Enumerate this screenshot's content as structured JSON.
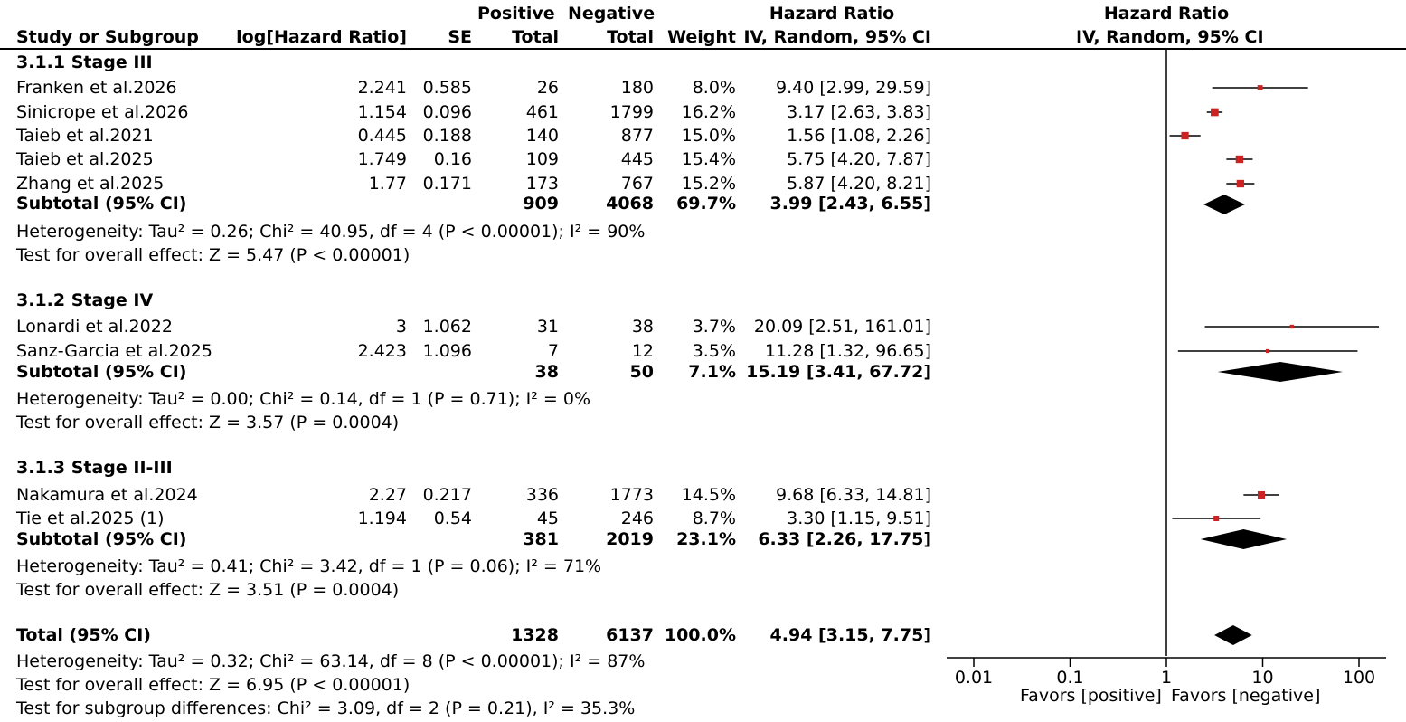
{
  "headers": {
    "study": "Study or Subgroup",
    "loghr": "log[Hazard Ratio]",
    "se": "SE",
    "pos_top": "Positive",
    "pos_bottom": "Total",
    "neg_top": "Negative",
    "neg_bottom": "Total",
    "weight": "Weight",
    "hr_top": "Hazard Ratio",
    "hr_bottom": "IV, Random, 95% CI",
    "plot_top": "Hazard Ratio",
    "plot_bottom": "IV, Random, 95% CI"
  },
  "subgroups": [
    {
      "title": "3.1.1 Stage III",
      "studies": [
        {
          "name": "Franken et al.2026",
          "loghr": "2.241",
          "se": "0.585",
          "pos": "26",
          "neg": "180",
          "weight": "8.0%",
          "ci": "9.40 [2.99, 29.59]"
        },
        {
          "name": "Sinicrope et al.2026",
          "loghr": "1.154",
          "se": "0.096",
          "pos": "461",
          "neg": "1799",
          "weight": "16.2%",
          "ci": "3.17 [2.63, 3.83]"
        },
        {
          "name": "Taieb et al.2021",
          "loghr": "0.445",
          "se": "0.188",
          "pos": "140",
          "neg": "877",
          "weight": "15.0%",
          "ci": "1.56 [1.08, 2.26]"
        },
        {
          "name": "Taieb et al.2025",
          "loghr": "1.749",
          "se": "0.16",
          "pos": "109",
          "neg": "445",
          "weight": "15.4%",
          "ci": "5.75 [4.20, 7.87]"
        },
        {
          "name": "Zhang et al.2025",
          "loghr": "1.77",
          "se": "0.171",
          "pos": "173",
          "neg": "767",
          "weight": "15.2%",
          "ci": "5.87 [4.20, 8.21]"
        }
      ],
      "subtotal": {
        "label": "Subtotal (95% CI)",
        "pos": "909",
        "neg": "4068",
        "weight": "69.7%",
        "ci": "3.99 [2.43, 6.55]"
      },
      "heterogeneity": "Heterogeneity: Tau² = 0.26; Chi² = 40.95, df = 4 (P < 0.00001); I² = 90%",
      "overall": "Test for overall effect: Z = 5.47 (P < 0.00001)"
    },
    {
      "title": "3.1.2 Stage IV",
      "studies": [
        {
          "name": "Lonardi et al.2022",
          "loghr": "3",
          "se": "1.062",
          "pos": "31",
          "neg": "38",
          "weight": "3.7%",
          "ci": "20.09 [2.51, 161.01]"
        },
        {
          "name": "Sanz-Garcia et al.2025",
          "loghr": "2.423",
          "se": "1.096",
          "pos": "7",
          "neg": "12",
          "weight": "3.5%",
          "ci": "11.28 [1.32, 96.65]"
        }
      ],
      "subtotal": {
        "label": "Subtotal (95% CI)",
        "pos": "38",
        "neg": "50",
        "weight": "7.1%",
        "ci": "15.19 [3.41, 67.72]"
      },
      "heterogeneity": "Heterogeneity: Tau² = 0.00; Chi² = 0.14, df = 1 (P = 0.71); I² = 0%",
      "overall": "Test for overall effect: Z = 3.57 (P = 0.0004)"
    },
    {
      "title": "3.1.3 Stage II-III",
      "studies": [
        {
          "name": "Nakamura et al.2024",
          "loghr": "2.27",
          "se": "0.217",
          "pos": "336",
          "neg": "1773",
          "weight": "14.5%",
          "ci": "9.68 [6.33, 14.81]"
        },
        {
          "name": "Tie et al.2025 (1)",
          "loghr": "1.194",
          "se": "0.54",
          "pos": "45",
          "neg": "246",
          "weight": "8.7%",
          "ci": "3.30 [1.15, 9.51]"
        }
      ],
      "subtotal": {
        "label": "Subtotal (95% CI)",
        "pos": "381",
        "neg": "2019",
        "weight": "23.1%",
        "ci": "6.33 [2.26, 17.75]"
      },
      "heterogeneity": "Heterogeneity: Tau² = 0.41; Chi² = 3.42, df = 1 (P = 0.06); I² = 71%",
      "overall": "Test for overall effect: Z = 3.51 (P = 0.0004)"
    }
  ],
  "total": {
    "label": "Total (95% CI)",
    "pos": "1328",
    "neg": "6137",
    "weight": "100.0%",
    "ci": "4.94 [3.15, 7.75]"
  },
  "total_heterogeneity": "Heterogeneity: Tau² = 0.32; Chi² = 63.14, df = 8 (P < 0.00001); I² = 87%",
  "total_overall": "Test for overall effect: Z = 6.95 (P < 0.00001)",
  "subgroup_differences": "Test for subgroup differences: Chi² = 3.09, df = 2 (P = 0.21), I² = 35.3%",
  "axis": {
    "favors_left": "Favors [positive]",
    "favors_right": "Favors [negative]"
  },
  "colors": {
    "marker": "#cc2222",
    "line": "#000000"
  },
  "chart_data": {
    "type": "forest",
    "x_scale": "log",
    "xlim": [
      0.005,
      200
    ],
    "ticks": [
      0.01,
      0.1,
      1,
      10,
      100
    ],
    "tick_labels": [
      "0.01",
      "0.1",
      "1",
      "10",
      "100"
    ],
    "studies": [
      {
        "name": "Franken et al.2026",
        "hr": 9.4,
        "lo": 2.99,
        "hi": 29.59,
        "weight": 8.0
      },
      {
        "name": "Sinicrope et al.2026",
        "hr": 3.17,
        "lo": 2.63,
        "hi": 3.83,
        "weight": 16.2
      },
      {
        "name": "Taieb et al.2021",
        "hr": 1.56,
        "lo": 1.08,
        "hi": 2.26,
        "weight": 15.0
      },
      {
        "name": "Taieb et al.2025",
        "hr": 5.75,
        "lo": 4.2,
        "hi": 7.87,
        "weight": 15.4
      },
      {
        "name": "Zhang et al.2025",
        "hr": 5.87,
        "lo": 4.2,
        "hi": 8.21,
        "weight": 15.2
      },
      {
        "name": "Lonardi et al.2022",
        "hr": 20.09,
        "lo": 2.51,
        "hi": 161.01,
        "weight": 3.7
      },
      {
        "name": "Sanz-Garcia et al.2025",
        "hr": 11.28,
        "lo": 1.32,
        "hi": 96.65,
        "weight": 3.5
      },
      {
        "name": "Nakamura et al.2024",
        "hr": 9.68,
        "lo": 6.33,
        "hi": 14.81,
        "weight": 14.5
      },
      {
        "name": "Tie et al.2025 (1)",
        "hr": 3.3,
        "lo": 1.15,
        "hi": 9.51,
        "weight": 8.7
      }
    ],
    "pooled": [
      {
        "name": "Subtotal 3.1.1 Stage III",
        "hr": 3.99,
        "lo": 2.43,
        "hi": 6.55
      },
      {
        "name": "Subtotal 3.1.2 Stage IV",
        "hr": 15.19,
        "lo": 3.41,
        "hi": 67.72
      },
      {
        "name": "Subtotal 3.1.3 Stage II-III",
        "hr": 6.33,
        "lo": 2.26,
        "hi": 17.75
      },
      {
        "name": "Total",
        "hr": 4.94,
        "lo": 3.15,
        "hi": 7.75
      }
    ]
  }
}
